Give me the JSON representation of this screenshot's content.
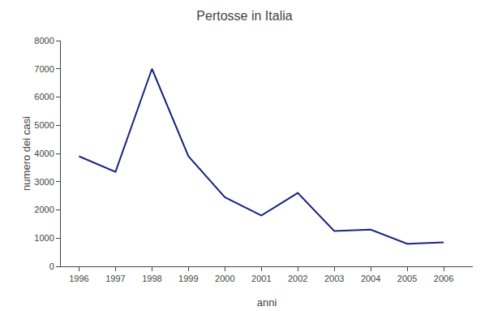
{
  "chart_data": {
    "type": "line",
    "title": "Pertosse in Italia",
    "xlabel": "anni",
    "ylabel": "numero dei casi",
    "x": [
      1996,
      1997,
      1998,
      1999,
      2000,
      2001,
      2002,
      2003,
      2004,
      2005,
      2006
    ],
    "values": [
      3900,
      3350,
      7000,
      3900,
      2450,
      1800,
      2600,
      1250,
      1300,
      800,
      850
    ],
    "color": "#1a237e",
    "xlim": [
      1995.5,
      2006.8
    ],
    "xticks": [
      1996,
      1997,
      1998,
      1999,
      2000,
      2001,
      2002,
      2003,
      2004,
      2005,
      2006
    ],
    "ylim": [
      0,
      8000
    ],
    "yticks": [
      0,
      1000,
      2000,
      3000,
      4000,
      5000,
      6000,
      7000,
      8000
    ],
    "grid": false
  }
}
